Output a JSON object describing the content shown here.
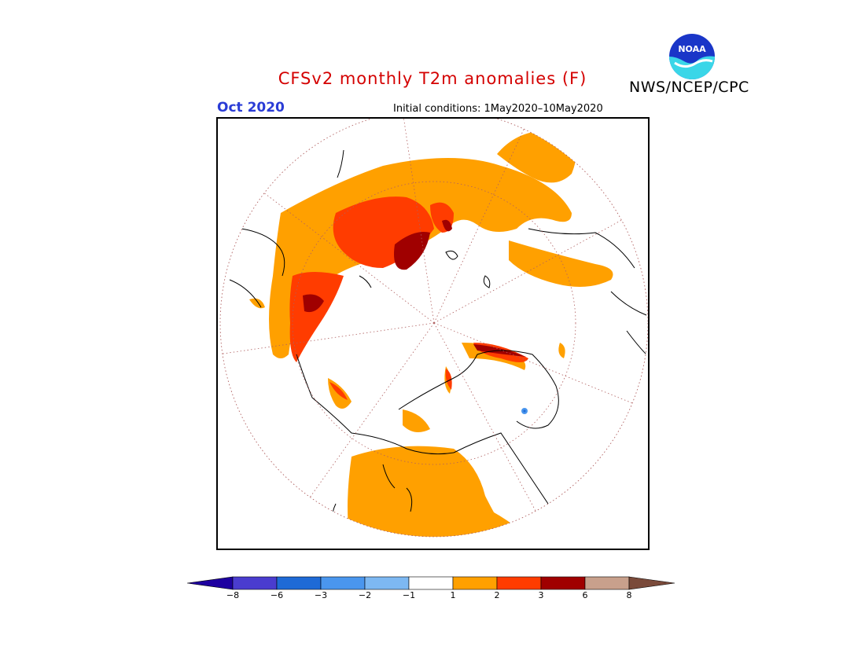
{
  "header": {
    "title": "CFSv2 monthly T2m anomalies (F)",
    "agency": "NWS/NCEP/CPC",
    "logo_text": "NOAA",
    "month": "Oct 2020",
    "initial_conditions": "Initial conditions: 1May2020–10May2020"
  },
  "legend": {
    "ticks": [
      "−8",
      "−6",
      "−3",
      "−2",
      "−1",
      "1",
      "2",
      "3",
      "6",
      "8"
    ],
    "bins": [
      {
        "range": "< −8",
        "color": "#1e00a0"
      },
      {
        "range": "−8 to −6",
        "color": "#4a3ccf"
      },
      {
        "range": "−6 to −3",
        "color": "#1e6ad6"
      },
      {
        "range": "−3 to −2",
        "color": "#4a96ee"
      },
      {
        "range": "−2 to −1",
        "color": "#7db8f2"
      },
      {
        "range": "−1 to 1",
        "color": "#ffffff"
      },
      {
        "range": "1 to 2",
        "color": "#ffa000"
      },
      {
        "range": "2 to 3",
        "color": "#ff3c00"
      },
      {
        "range": "3 to 6",
        "color": "#a00000"
      },
      {
        "range": "6 to 8",
        "color": "#c8a08c"
      },
      {
        "range": "> 8",
        "color": "#7a4a3a"
      }
    ]
  },
  "map": {
    "projection": "north-polar-stereographic",
    "grid_color": "#b06060",
    "coast_color": "#000000"
  }
}
